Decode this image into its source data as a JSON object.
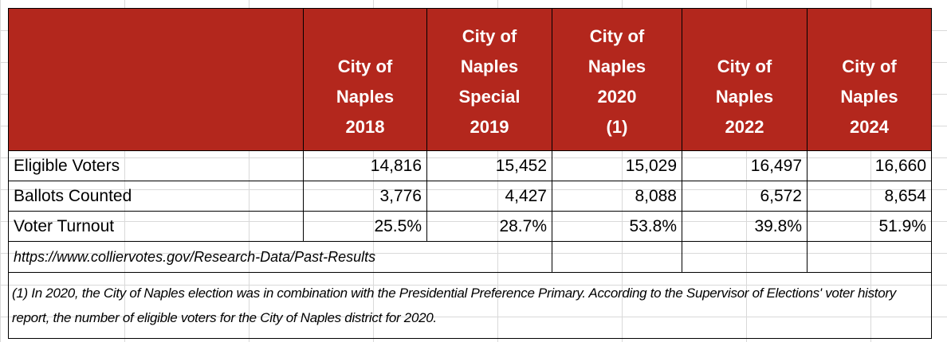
{
  "table": {
    "header": [
      [
        "City of",
        "Naples",
        "2018"
      ],
      [
        "City of",
        "Naples",
        "Special",
        "2019"
      ],
      [
        "City of",
        "Naples",
        "2020",
        "(1)"
      ],
      [
        "City of",
        "Naples",
        "2022"
      ],
      [
        "City of",
        "Naples",
        "2024"
      ]
    ],
    "rows": [
      [
        "Eligible Voters",
        "14,816",
        "15,452",
        "15,029",
        "16,497",
        "16,660"
      ],
      [
        "Ballots Counted",
        "3,776",
        "4,427",
        "8,088",
        "6,572",
        "8,654"
      ],
      [
        "Voter Turnout",
        "25.5%",
        "28.7%",
        "53.8%",
        "39.8%",
        "51.9%"
      ]
    ],
    "source": "https://www.colliervotes.gov/Research-Data/Past-Results",
    "footnote": "(1) In 2020, the City of Naples election was in combination with the Presidential Preference Primary. According to the Supervisor of Elections' voter history report, the number of eligible voters for the City of Naples district for 2020."
  }
}
